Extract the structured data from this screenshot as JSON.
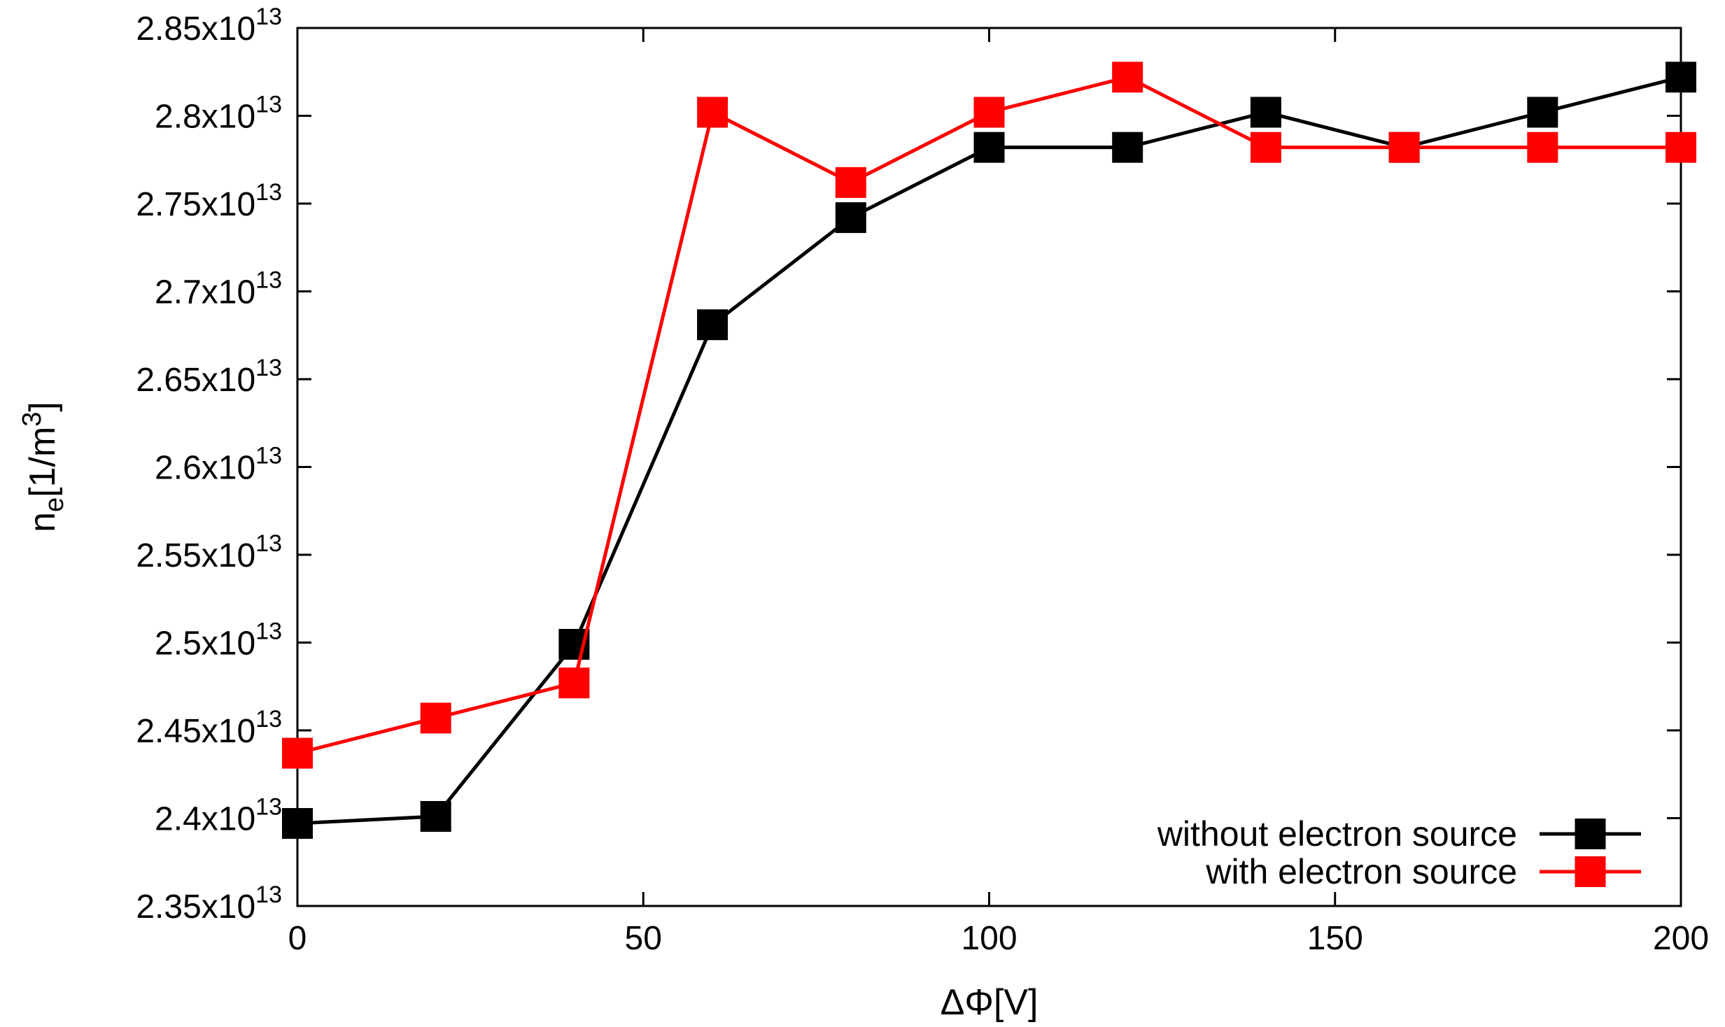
{
  "chart_data": {
    "type": "line",
    "xlabel": "ΔΦ[V]",
    "ylabel": {
      "base": "n",
      "sub": "e",
      "unit_pre": "[1/m",
      "unit_sup": "3",
      "unit_post": "]"
    },
    "xlim": [
      0,
      200
    ],
    "ylim": [
      23500000000000.0,
      28500000000000.0
    ],
    "grid": false,
    "legend_position": "bottom-right",
    "x_ticks": [
      {
        "value": 0,
        "label": "0"
      },
      {
        "value": 50,
        "label": "50"
      },
      {
        "value": 100,
        "label": "100"
      },
      {
        "value": 150,
        "label": "150"
      },
      {
        "value": 200,
        "label": "200"
      }
    ],
    "y_ticks": [
      {
        "value": 23500000000000.0,
        "mantissa": "2.35x10",
        "exp": "13"
      },
      {
        "value": 24000000000000.0,
        "mantissa": "2.4x10",
        "exp": "13"
      },
      {
        "value": 24500000000000.0,
        "mantissa": "2.45x10",
        "exp": "13"
      },
      {
        "value": 25000000000000.0,
        "mantissa": "2.5x10",
        "exp": "13"
      },
      {
        "value": 25500000000000.0,
        "mantissa": "2.55x10",
        "exp": "13"
      },
      {
        "value": 26000000000000.0,
        "mantissa": "2.6x10",
        "exp": "13"
      },
      {
        "value": 26500000000000.0,
        "mantissa": "2.65x10",
        "exp": "13"
      },
      {
        "value": 27000000000000.0,
        "mantissa": "2.7x10",
        "exp": "13"
      },
      {
        "value": 27500000000000.0,
        "mantissa": "2.75x10",
        "exp": "13"
      },
      {
        "value": 28000000000000.0,
        "mantissa": "2.8x10",
        "exp": "13"
      },
      {
        "value": 28500000000000.0,
        "mantissa": "2.85x10",
        "exp": "13"
      }
    ],
    "x": [
      0,
      20,
      40,
      60,
      80,
      100,
      120,
      140,
      160,
      180,
      200
    ],
    "series": [
      {
        "name": "without electron source",
        "color": "#000000",
        "values": [
          23970000000000.0,
          24010000000000.0,
          24990000000000.0,
          26810000000000.0,
          27420000000000.0,
          27820000000000.0,
          27820000000000.0,
          28020000000000.0,
          27820000000000.0,
          28020000000000.0,
          28220000000000.0
        ]
      },
      {
        "name": "with electron source",
        "color": "#ff0000",
        "values": [
          24370000000000.0,
          24570000000000.0,
          24770000000000.0,
          28020000000000.0,
          27620000000000.0,
          28020000000000.0,
          28220000000000.0,
          27820000000000.0,
          27820000000000.0,
          27820000000000.0,
          27820000000000.0
        ]
      }
    ]
  }
}
